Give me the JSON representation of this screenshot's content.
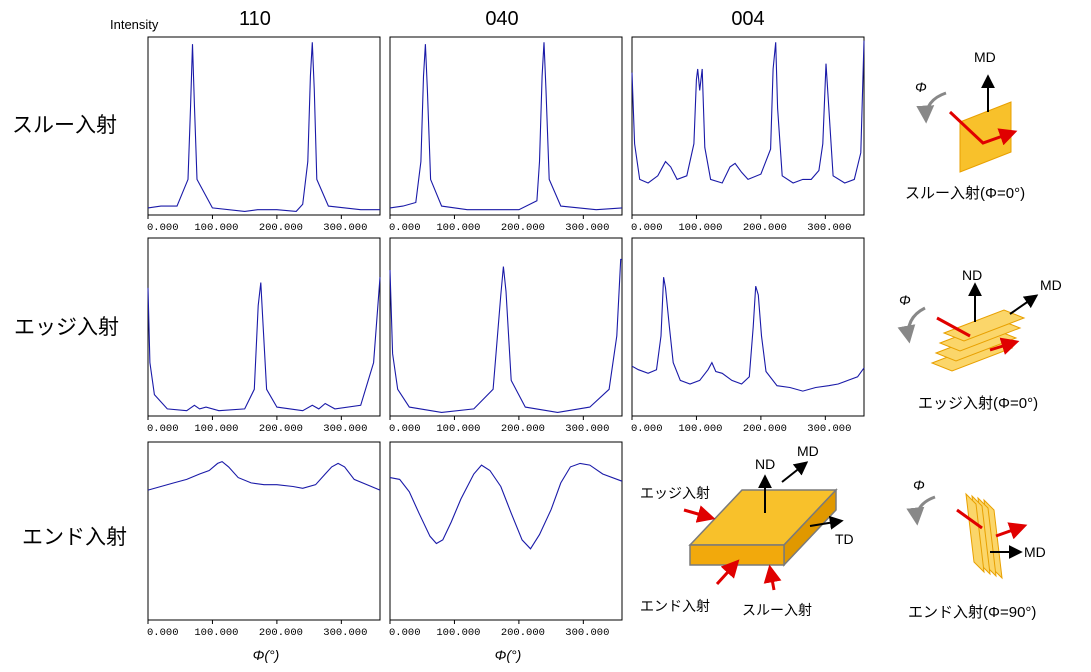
{
  "figure": {
    "intensity_label": "Intensity",
    "column_headers": [
      "110",
      "040",
      "004"
    ],
    "row_labels": [
      "スルー入射",
      "エッジ入射",
      "エンド入射"
    ],
    "x_axis_label": "Φ(°)",
    "tick_labels": [
      "0.000",
      "100.000",
      "200.000",
      "300.000"
    ]
  },
  "schematics": {
    "through": {
      "caption": "スルー入射(Φ=0°)",
      "phi": "Φ",
      "md": "MD"
    },
    "edge": {
      "caption": "エッジ入射(Φ=0°)",
      "phi": "Φ",
      "nd": "ND",
      "md": "MD"
    },
    "end": {
      "caption": "エンド入射(Φ=90°)",
      "phi": "Φ",
      "md": "MD"
    },
    "sample": {
      "nd": "ND",
      "md": "MD",
      "td": "TD",
      "edge": "エッジ入射",
      "end": "エンド入射",
      "through": "スルー入射"
    }
  },
  "colors": {
    "trace": "#1a1aa8",
    "sample_fill": "#f8c12b",
    "sample_edge": "#e8a000",
    "beam": "#e00000",
    "rot_arrow": "#888888"
  },
  "chart_data": {
    "type": "line",
    "xlim": [
      0,
      360
    ],
    "x_ticks": [
      0,
      100,
      200,
      300
    ],
    "grid": false,
    "panels": [
      {
        "row": "スルー入射",
        "column": "110",
        "ylim": [
          0,
          1
        ],
        "points": [
          [
            0,
            0.04
          ],
          [
            20,
            0.05
          ],
          [
            45,
            0.05
          ],
          [
            62,
            0.2
          ],
          [
            66,
            0.6
          ],
          [
            69,
            0.96
          ],
          [
            72,
            0.62
          ],
          [
            76,
            0.2
          ],
          [
            100,
            0.04
          ],
          [
            150,
            0.02
          ],
          [
            170,
            0.03
          ],
          [
            200,
            0.03
          ],
          [
            230,
            0.02
          ],
          [
            240,
            0.06
          ],
          [
            248,
            0.3
          ],
          [
            252,
            0.78
          ],
          [
            255,
            0.97
          ],
          [
            258,
            0.7
          ],
          [
            262,
            0.2
          ],
          [
            280,
            0.05
          ],
          [
            330,
            0.03
          ],
          [
            360,
            0.03
          ]
        ]
      },
      {
        "row": "スルー入射",
        "column": "040",
        "ylim": [
          0,
          1
        ],
        "points": [
          [
            0,
            0.04
          ],
          [
            20,
            0.05
          ],
          [
            40,
            0.07
          ],
          [
            48,
            0.3
          ],
          [
            52,
            0.78
          ],
          [
            55,
            0.96
          ],
          [
            58,
            0.7
          ],
          [
            63,
            0.2
          ],
          [
            80,
            0.05
          ],
          [
            120,
            0.03
          ],
          [
            200,
            0.03
          ],
          [
            228,
            0.08
          ],
          [
            232,
            0.3
          ],
          [
            236,
            0.78
          ],
          [
            239,
            0.97
          ],
          [
            242,
            0.7
          ],
          [
            247,
            0.2
          ],
          [
            265,
            0.05
          ],
          [
            320,
            0.03
          ],
          [
            360,
            0.04
          ]
        ]
      },
      {
        "row": "スルー入射",
        "column": "004",
        "ylim": [
          0,
          1
        ],
        "points": [
          [
            0,
            0.8
          ],
          [
            4,
            0.4
          ],
          [
            12,
            0.2
          ],
          [
            25,
            0.18
          ],
          [
            40,
            0.22
          ],
          [
            52,
            0.3
          ],
          [
            60,
            0.27
          ],
          [
            70,
            0.2
          ],
          [
            85,
            0.22
          ],
          [
            96,
            0.4
          ],
          [
            100,
            0.76
          ],
          [
            102,
            0.82
          ],
          [
            105,
            0.7
          ],
          [
            109,
            0.82
          ],
          [
            113,
            0.38
          ],
          [
            122,
            0.2
          ],
          [
            140,
            0.18
          ],
          [
            152,
            0.27
          ],
          [
            160,
            0.29
          ],
          [
            170,
            0.24
          ],
          [
            180,
            0.2
          ],
          [
            200,
            0.23
          ],
          [
            215,
            0.37
          ],
          [
            219,
            0.82
          ],
          [
            223,
            0.97
          ],
          [
            226,
            0.6
          ],
          [
            233,
            0.22
          ],
          [
            250,
            0.18
          ],
          [
            265,
            0.2
          ],
          [
            278,
            0.2
          ],
          [
            290,
            0.25
          ],
          [
            296,
            0.4
          ],
          [
            301,
            0.85
          ],
          [
            305,
            0.62
          ],
          [
            312,
            0.22
          ],
          [
            330,
            0.18
          ],
          [
            345,
            0.2
          ],
          [
            355,
            0.35
          ],
          [
            360,
            0.98
          ]
        ]
      },
      {
        "row": "エッジ入射",
        "column": "110",
        "ylim": [
          0,
          1
        ],
        "points": [
          [
            0,
            0.72
          ],
          [
            3,
            0.3
          ],
          [
            10,
            0.12
          ],
          [
            30,
            0.04
          ],
          [
            60,
            0.03
          ],
          [
            72,
            0.06
          ],
          [
            80,
            0.04
          ],
          [
            90,
            0.05
          ],
          [
            110,
            0.03
          ],
          [
            150,
            0.04
          ],
          [
            165,
            0.15
          ],
          [
            171,
            0.62
          ],
          [
            175,
            0.75
          ],
          [
            178,
            0.55
          ],
          [
            184,
            0.15
          ],
          [
            200,
            0.05
          ],
          [
            240,
            0.03
          ],
          [
            255,
            0.06
          ],
          [
            265,
            0.04
          ],
          [
            275,
            0.07
          ],
          [
            290,
            0.04
          ],
          [
            330,
            0.06
          ],
          [
            350,
            0.3
          ],
          [
            360,
            0.78
          ]
        ]
      },
      {
        "row": "エッジ入射",
        "column": "040",
        "ylim": [
          0,
          1
        ],
        "points": [
          [
            0,
            0.82
          ],
          [
            4,
            0.35
          ],
          [
            12,
            0.15
          ],
          [
            30,
            0.05
          ],
          [
            80,
            0.02
          ],
          [
            130,
            0.04
          ],
          [
            160,
            0.15
          ],
          [
            172,
            0.68
          ],
          [
            176,
            0.84
          ],
          [
            180,
            0.7
          ],
          [
            188,
            0.2
          ],
          [
            210,
            0.05
          ],
          [
            260,
            0.02
          ],
          [
            310,
            0.05
          ],
          [
            340,
            0.15
          ],
          [
            352,
            0.45
          ],
          [
            358,
            0.88
          ],
          [
            360,
            0.88
          ]
        ]
      },
      {
        "row": "エッジ入射",
        "column": "004",
        "ylim": [
          0,
          1
        ],
        "points": [
          [
            0,
            0.28
          ],
          [
            10,
            0.26
          ],
          [
            25,
            0.24
          ],
          [
            38,
            0.26
          ],
          [
            45,
            0.45
          ],
          [
            49,
            0.78
          ],
          [
            52,
            0.72
          ],
          [
            58,
            0.5
          ],
          [
            64,
            0.3
          ],
          [
            75,
            0.2
          ],
          [
            90,
            0.18
          ],
          [
            105,
            0.2
          ],
          [
            118,
            0.26
          ],
          [
            124,
            0.3
          ],
          [
            130,
            0.25
          ],
          [
            140,
            0.24
          ],
          [
            155,
            0.2
          ],
          [
            170,
            0.18
          ],
          [
            182,
            0.22
          ],
          [
            188,
            0.5
          ],
          [
            192,
            0.73
          ],
          [
            196,
            0.68
          ],
          [
            201,
            0.45
          ],
          [
            208,
            0.25
          ],
          [
            225,
            0.17
          ],
          [
            245,
            0.16
          ],
          [
            265,
            0.14
          ],
          [
            285,
            0.16
          ],
          [
            305,
            0.17
          ],
          [
            320,
            0.18
          ],
          [
            335,
            0.2
          ],
          [
            350,
            0.22
          ],
          [
            360,
            0.27
          ]
        ]
      },
      {
        "row": "エンド入射",
        "column": "110",
        "ylim": [
          0,
          1
        ],
        "points": [
          [
            0,
            0.73
          ],
          [
            20,
            0.75
          ],
          [
            40,
            0.77
          ],
          [
            60,
            0.79
          ],
          [
            80,
            0.82
          ],
          [
            95,
            0.84
          ],
          [
            108,
            0.88
          ],
          [
            115,
            0.89
          ],
          [
            125,
            0.86
          ],
          [
            140,
            0.8
          ],
          [
            160,
            0.77
          ],
          [
            180,
            0.76
          ],
          [
            200,
            0.76
          ],
          [
            225,
            0.75
          ],
          [
            240,
            0.74
          ],
          [
            260,
            0.76
          ],
          [
            275,
            0.82
          ],
          [
            285,
            0.86
          ],
          [
            295,
            0.88
          ],
          [
            305,
            0.86
          ],
          [
            320,
            0.79
          ],
          [
            340,
            0.76
          ],
          [
            360,
            0.73
          ]
        ]
      },
      {
        "row": "エンド入射",
        "column": "040",
        "ylim": [
          0,
          1
        ],
        "points": [
          [
            0,
            0.8
          ],
          [
            15,
            0.79
          ],
          [
            30,
            0.72
          ],
          [
            45,
            0.6
          ],
          [
            62,
            0.47
          ],
          [
            72,
            0.43
          ],
          [
            82,
            0.45
          ],
          [
            95,
            0.55
          ],
          [
            110,
            0.68
          ],
          [
            130,
            0.82
          ],
          [
            142,
            0.87
          ],
          [
            155,
            0.84
          ],
          [
            172,
            0.75
          ],
          [
            188,
            0.6
          ],
          [
            205,
            0.45
          ],
          [
            218,
            0.4
          ],
          [
            232,
            0.48
          ],
          [
            250,
            0.62
          ],
          [
            265,
            0.77
          ],
          [
            280,
            0.86
          ],
          [
            295,
            0.88
          ],
          [
            310,
            0.87
          ],
          [
            330,
            0.82
          ],
          [
            360,
            0.78
          ]
        ]
      }
    ]
  }
}
